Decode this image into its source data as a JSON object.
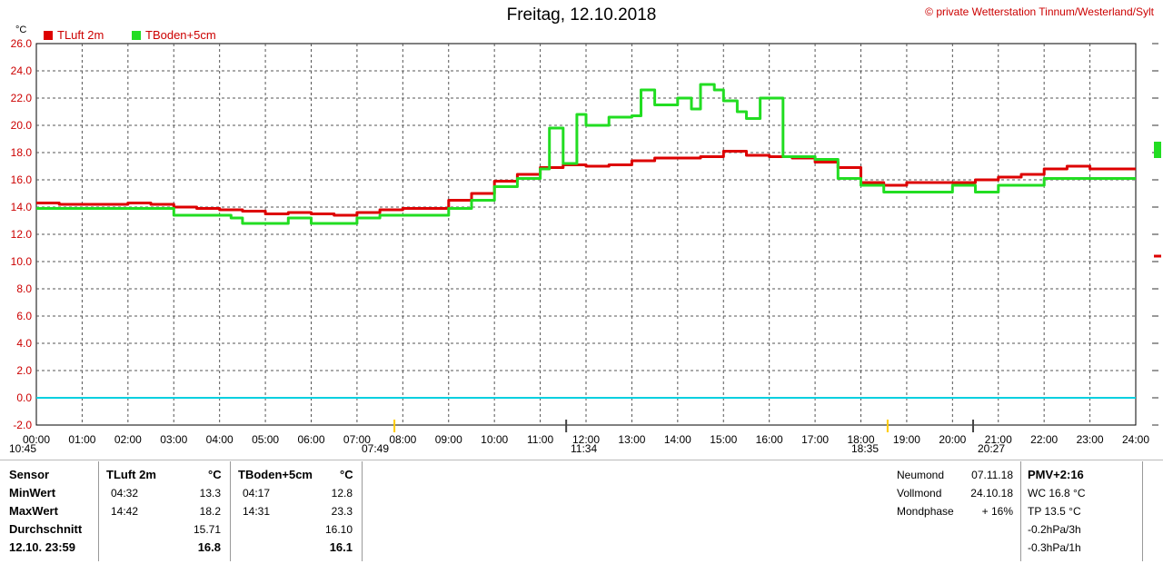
{
  "title": "Freitag, 12.10.2018",
  "credit": "© private Wetterstation Tinnum/Westerland/Sylt",
  "unit_label": "°C",
  "colors": {
    "tluft": "#dd0000",
    "tboden": "#22dd22",
    "zero": "#00d0e0"
  },
  "chart_data": {
    "type": "line",
    "ylim": [
      -2,
      26
    ],
    "ytick_labels": [
      "-2.0",
      "0.0",
      "2.0",
      "4.0",
      "6.0",
      "8.0",
      "10.0",
      "12.0",
      "14.0",
      "16.0",
      "18.0",
      "20.0",
      "22.0",
      "24.0",
      "26.0"
    ],
    "xlim": [
      0,
      24
    ],
    "xtick_labels": [
      "00:00",
      "01:00",
      "02:00",
      "03:00",
      "04:00",
      "05:00",
      "06:00",
      "07:00",
      "08:00",
      "09:00",
      "10:00",
      "11:00",
      "12:00",
      "13:00",
      "14:00",
      "15:00",
      "16:00",
      "17:00",
      "18:00",
      "19:00",
      "20:00",
      "21:00",
      "22:00",
      "23:00",
      "24:00"
    ],
    "grid": true,
    "legend_position": "top-left",
    "series": [
      {
        "name": "TLuft 2m",
        "color": "#dd0000",
        "x": [
          0,
          0.5,
          1,
          1.5,
          2,
          2.5,
          3,
          3.5,
          4,
          4.5,
          5,
          5.5,
          6,
          6.5,
          7,
          7.5,
          8,
          8.5,
          9,
          9.5,
          10,
          10.5,
          11,
          11.5,
          12,
          12.5,
          13,
          13.5,
          14,
          14.5,
          15,
          15.5,
          16,
          16.5,
          17,
          17.5,
          18,
          18.5,
          19,
          19.5,
          20,
          20.5,
          21,
          21.5,
          22,
          22.5,
          23,
          23.5,
          24
        ],
        "y": [
          14.3,
          14.2,
          14.2,
          14.2,
          14.3,
          14.2,
          14.0,
          13.9,
          13.8,
          13.7,
          13.5,
          13.6,
          13.5,
          13.4,
          13.6,
          13.8,
          13.9,
          13.9,
          14.5,
          15.0,
          15.9,
          16.4,
          16.9,
          17.1,
          17.0,
          17.1,
          17.4,
          17.6,
          17.6,
          17.7,
          18.1,
          17.8,
          17.7,
          17.6,
          17.3,
          16.9,
          15.8,
          15.6,
          15.8,
          15.8,
          15.8,
          16.0,
          16.2,
          16.4,
          16.8,
          17.0,
          16.8,
          16.8,
          16.8
        ]
      },
      {
        "name": "TBoden+5cm",
        "color": "#22dd22",
        "x": [
          0,
          0.5,
          1,
          1.5,
          2,
          2.5,
          3,
          3.5,
          4,
          4.25,
          4.5,
          5,
          5.5,
          6,
          6.5,
          7,
          7.5,
          8,
          8.5,
          9,
          9.5,
          10,
          10.5,
          11,
          11.2,
          11.5,
          11.8,
          12,
          12.5,
          13,
          13.2,
          13.5,
          14,
          14.3,
          14.5,
          14.8,
          15,
          15.3,
          15.5,
          15.8,
          16,
          16.3,
          16.5,
          17,
          17.5,
          18,
          18.5,
          19,
          19.5,
          20,
          20.5,
          21,
          21.5,
          22,
          22.5,
          23,
          23.5,
          24
        ],
        "y": [
          13.9,
          13.9,
          13.9,
          13.9,
          13.9,
          13.9,
          13.4,
          13.4,
          13.4,
          13.2,
          12.8,
          12.8,
          13.2,
          12.8,
          12.8,
          13.2,
          13.4,
          13.4,
          13.4,
          13.9,
          14.5,
          15.5,
          16.1,
          16.8,
          19.8,
          17.2,
          20.8,
          20.0,
          20.6,
          20.7,
          22.6,
          21.5,
          22.0,
          21.2,
          23.0,
          22.6,
          21.8,
          21.0,
          20.5,
          22.0,
          22.0,
          17.7,
          17.7,
          17.5,
          16.1,
          15.6,
          15.1,
          15.1,
          15.1,
          15.6,
          15.1,
          15.6,
          15.6,
          16.1,
          16.1,
          16.1,
          16.1,
          16.1
        ]
      }
    ]
  },
  "sun_moon": {
    "sunrise": "07:49",
    "sunset": "18:35",
    "moonrise": "11:34",
    "moonset": "20:27",
    "day_start": "10:45"
  },
  "table": {
    "sensor_header": "Sensor",
    "row_labels": [
      "MinWert",
      "MaxWert",
      "Durchschnitt",
      "12.10. 23:59"
    ],
    "tluft": {
      "header": "TLuft 2m",
      "unit": "°C",
      "min_time": "04:32",
      "min": "13.3",
      "max_time": "14:42",
      "max": "18.2",
      "avg": "15.71",
      "last": "16.8"
    },
    "tboden": {
      "header": "TBoden+5cm",
      "unit": "°C",
      "min_time": "04:17",
      "min": "12.8",
      "max_time": "14:31",
      "max": "23.3",
      "avg": "16.10",
      "last": "16.1"
    }
  },
  "moon": {
    "labels": [
      "Neumond",
      "Vollmond",
      "Mondphase"
    ],
    "values": [
      "07.11.18",
      "24.10.18",
      "+ 16%"
    ]
  },
  "pmv": {
    "header": "PMV+2:16",
    "lines": [
      "WC 16.8 °C",
      "TP 13.5 °C",
      "-0.2hPa/3h",
      "-0.3hPa/1h"
    ]
  }
}
